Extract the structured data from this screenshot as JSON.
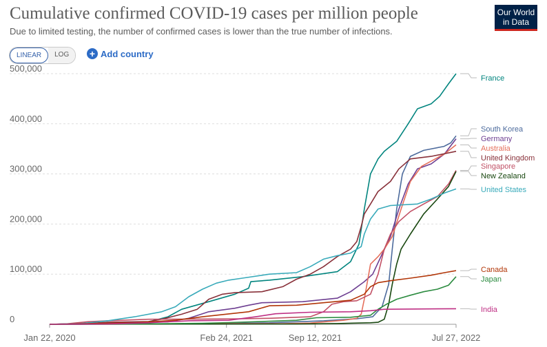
{
  "header": {
    "title": "Cumulative confirmed COVID-19 cases per million people",
    "subtitle": "Due to limited testing, the number of confirmed cases is lower than the true number of infections.",
    "logo_line1": "Our World",
    "logo_line2": "in Data"
  },
  "controls": {
    "linear_label": "LINEAR",
    "log_label": "LOG",
    "add_country_label": "Add country"
  },
  "colors": {
    "gridline": "#dddddd",
    "axis": "#999999",
    "connector": "#bbbbbb"
  },
  "chart_data": {
    "type": "line",
    "title": "Cumulative confirmed COVID-19 cases per million people",
    "subtitle": "Due to limited testing, the number of confirmed cases is lower than the true number of infections.",
    "x_ticks": [
      "Jan 22, 2020",
      "Feb 24, 2021",
      "Sep 12, 2021",
      "Jul 27, 2022"
    ],
    "x_range": [
      "2020-01-22",
      "2022-07-27"
    ],
    "y_ticks": [
      "0",
      "100,000",
      "200,000",
      "300,000",
      "400,000",
      "500,000"
    ],
    "ylim": [
      0,
      500000
    ],
    "grid": true,
    "legend_placement": "right",
    "series": [
      {
        "name": "France",
        "color": "#00847e",
        "points": [
          [
            "2020-01-22",
            0
          ],
          [
            "2020-04-15",
            1500
          ],
          [
            "2020-09-01",
            5000
          ],
          [
            "2020-10-15",
            15000
          ],
          [
            "2020-11-15",
            30000
          ],
          [
            "2021-01-15",
            45000
          ],
          [
            "2021-03-15",
            60000
          ],
          [
            "2021-04-15",
            72000
          ],
          [
            "2021-04-20",
            85000
          ],
          [
            "2021-06-01",
            88000
          ],
          [
            "2021-08-15",
            95000
          ],
          [
            "2021-11-01",
            105000
          ],
          [
            "2021-12-01",
            125000
          ],
          [
            "2021-12-20",
            160000
          ],
          [
            "2022-01-01",
            230000
          ],
          [
            "2022-01-15",
            300000
          ],
          [
            "2022-02-01",
            330000
          ],
          [
            "2022-02-15",
            345000
          ],
          [
            "2022-03-15",
            365000
          ],
          [
            "2022-04-10",
            400000
          ],
          [
            "2022-05-01",
            430000
          ],
          [
            "2022-06-01",
            440000
          ],
          [
            "2022-06-20",
            455000
          ],
          [
            "2022-07-10",
            480000
          ],
          [
            "2022-07-27",
            500000
          ]
        ]
      },
      {
        "name": "South Korea",
        "color": "#4c6a9c",
        "points": [
          [
            "2020-01-22",
            0
          ],
          [
            "2020-04-01",
            200
          ],
          [
            "2020-10-01",
            500
          ],
          [
            "2021-01-01",
            1200
          ],
          [
            "2021-06-01",
            3000
          ],
          [
            "2021-10-01",
            7000
          ],
          [
            "2021-12-15",
            11000
          ],
          [
            "2022-01-20",
            15000
          ],
          [
            "2022-02-10",
            35000
          ],
          [
            "2022-02-25",
            80000
          ],
          [
            "2022-03-05",
            150000
          ],
          [
            "2022-03-15",
            230000
          ],
          [
            "2022-03-28",
            300000
          ],
          [
            "2022-04-15",
            335000
          ],
          [
            "2022-05-15",
            347000
          ],
          [
            "2022-06-30",
            355000
          ],
          [
            "2022-07-15",
            362000
          ],
          [
            "2022-07-27",
            376000
          ]
        ]
      },
      {
        "name": "Germany",
        "color": "#6d3e91",
        "points": [
          [
            "2020-01-22",
            0
          ],
          [
            "2020-05-01",
            2000
          ],
          [
            "2020-10-15",
            5000
          ],
          [
            "2020-12-01",
            12000
          ],
          [
            "2021-01-15",
            25000
          ],
          [
            "2021-03-15",
            32000
          ],
          [
            "2021-04-15",
            38000
          ],
          [
            "2021-05-15",
            43000
          ],
          [
            "2021-08-15",
            45000
          ],
          [
            "2021-11-01",
            52000
          ],
          [
            "2021-12-01",
            65000
          ],
          [
            "2022-01-01",
            85000
          ],
          [
            "2022-01-20",
            100000
          ],
          [
            "2022-02-10",
            140000
          ],
          [
            "2022-03-01",
            175000
          ],
          [
            "2022-03-20",
            230000
          ],
          [
            "2022-04-10",
            280000
          ],
          [
            "2022-05-01",
            310000
          ],
          [
            "2022-06-01",
            320000
          ],
          [
            "2022-07-01",
            340000
          ],
          [
            "2022-07-27",
            370000
          ]
        ]
      },
      {
        "name": "Australia",
        "color": "#e56e5a",
        "points": [
          [
            "2020-01-22",
            0
          ],
          [
            "2020-06-01",
            300
          ],
          [
            "2021-01-01",
            1100
          ],
          [
            "2021-07-01",
            1400
          ],
          [
            "2021-09-01",
            2500
          ],
          [
            "2021-11-15",
            8000
          ],
          [
            "2021-12-15",
            12000
          ],
          [
            "2021-12-25",
            20000
          ],
          [
            "2022-01-01",
            50000
          ],
          [
            "2022-01-15",
            120000
          ],
          [
            "2022-02-01",
            135000
          ],
          [
            "2022-02-15",
            150000
          ],
          [
            "2022-03-05",
            175000
          ],
          [
            "2022-03-25",
            230000
          ],
          [
            "2022-04-15",
            285000
          ],
          [
            "2022-05-10",
            315000
          ],
          [
            "2022-06-10",
            330000
          ],
          [
            "2022-07-01",
            340000
          ],
          [
            "2022-07-27",
            358000
          ]
        ]
      },
      {
        "name": "United Kingdom",
        "color": "#883039",
        "points": [
          [
            "2020-01-22",
            0
          ],
          [
            "2020-04-15",
            1500
          ],
          [
            "2020-06-01",
            4000
          ],
          [
            "2020-09-01",
            5500
          ],
          [
            "2020-10-01",
            10000
          ],
          [
            "2020-11-15",
            20000
          ],
          [
            "2020-12-20",
            30000
          ],
          [
            "2021-01-15",
            50000
          ],
          [
            "2021-02-15",
            60000
          ],
          [
            "2021-03-15",
            63000
          ],
          [
            "2021-05-15",
            65000
          ],
          [
            "2021-07-01",
            75000
          ],
          [
            "2021-08-01",
            90000
          ],
          [
            "2021-09-01",
            100000
          ],
          [
            "2021-10-01",
            115000
          ],
          [
            "2021-11-01",
            135000
          ],
          [
            "2021-12-01",
            150000
          ],
          [
            "2021-12-15",
            165000
          ],
          [
            "2021-12-25",
            195000
          ],
          [
            "2022-01-01",
            220000
          ],
          [
            "2022-01-15",
            240000
          ],
          [
            "2022-02-01",
            265000
          ],
          [
            "2022-03-01",
            285000
          ],
          [
            "2022-03-20",
            310000
          ],
          [
            "2022-04-15",
            330000
          ],
          [
            "2022-06-01",
            335000
          ],
          [
            "2022-07-27",
            345000
          ]
        ]
      },
      {
        "name": "Singapore",
        "color": "#c15065",
        "points": [
          [
            "2020-01-22",
            0
          ],
          [
            "2020-03-01",
            1000
          ],
          [
            "2020-04-15",
            5000
          ],
          [
            "2020-06-01",
            7000
          ],
          [
            "2020-09-01",
            10000
          ],
          [
            "2021-01-01",
            10500
          ],
          [
            "2021-04-01",
            11000
          ],
          [
            "2021-06-01",
            12000
          ],
          [
            "2021-09-01",
            15000
          ],
          [
            "2021-10-01",
            25000
          ],
          [
            "2021-10-20",
            40000
          ],
          [
            "2021-11-15",
            45000
          ],
          [
            "2021-12-15",
            47000
          ],
          [
            "2022-01-15",
            60000
          ],
          [
            "2022-02-01",
            100000
          ],
          [
            "2022-02-15",
            150000
          ],
          [
            "2022-03-01",
            180000
          ],
          [
            "2022-03-20",
            205000
          ],
          [
            "2022-04-15",
            225000
          ],
          [
            "2022-05-15",
            240000
          ],
          [
            "2022-06-15",
            255000
          ],
          [
            "2022-07-10",
            280000
          ],
          [
            "2022-07-27",
            307000
          ]
        ]
      },
      {
        "name": "New Zealand",
        "color": "#18470f",
        "points": [
          [
            "2020-01-22",
            0
          ],
          [
            "2020-06-01",
            300
          ],
          [
            "2021-01-01",
            400
          ],
          [
            "2021-08-01",
            600
          ],
          [
            "2021-11-01",
            1500
          ],
          [
            "2022-01-15",
            3000
          ],
          [
            "2022-02-01",
            4000
          ],
          [
            "2022-02-15",
            10000
          ],
          [
            "2022-02-25",
            40000
          ],
          [
            "2022-03-05",
            80000
          ],
          [
            "2022-03-15",
            120000
          ],
          [
            "2022-03-25",
            150000
          ],
          [
            "2022-04-15",
            180000
          ],
          [
            "2022-05-15",
            220000
          ],
          [
            "2022-06-15",
            250000
          ],
          [
            "2022-07-10",
            275000
          ],
          [
            "2022-07-27",
            305000
          ]
        ]
      },
      {
        "name": "United States",
        "color": "#38aaba",
        "points": [
          [
            "2020-01-22",
            0
          ],
          [
            "2020-04-01",
            1500
          ],
          [
            "2020-06-01",
            7000
          ],
          [
            "2020-08-01",
            15000
          ],
          [
            "2020-10-01",
            25000
          ],
          [
            "2020-11-01",
            35000
          ],
          [
            "2020-12-01",
            55000
          ],
          [
            "2021-01-01",
            70000
          ],
          [
            "2021-02-01",
            82000
          ],
          [
            "2021-03-01",
            88000
          ],
          [
            "2021-04-01",
            92000
          ],
          [
            "2021-06-01",
            100000
          ],
          [
            "2021-08-01",
            103000
          ],
          [
            "2021-09-01",
            115000
          ],
          [
            "2021-10-01",
            130000
          ],
          [
            "2021-11-01",
            137000
          ],
          [
            "2021-12-01",
            142000
          ],
          [
            "2021-12-25",
            155000
          ],
          [
            "2022-01-01",
            180000
          ],
          [
            "2022-01-15",
            210000
          ],
          [
            "2022-02-01",
            230000
          ],
          [
            "2022-03-01",
            237000
          ],
          [
            "2022-05-01",
            240000
          ],
          [
            "2022-06-01",
            250000
          ],
          [
            "2022-07-01",
            262000
          ],
          [
            "2022-07-27",
            270000
          ]
        ]
      },
      {
        "name": "Canada",
        "color": "#b13507",
        "points": [
          [
            "2020-01-22",
            0
          ],
          [
            "2020-05-01",
            1500
          ],
          [
            "2020-08-01",
            3000
          ],
          [
            "2020-11-01",
            8000
          ],
          [
            "2021-01-01",
            15000
          ],
          [
            "2021-04-15",
            25000
          ],
          [
            "2021-06-01",
            37000
          ],
          [
            "2021-08-01",
            38000
          ],
          [
            "2021-10-01",
            43000
          ],
          [
            "2021-12-01",
            48000
          ],
          [
            "2022-01-01",
            60000
          ],
          [
            "2022-01-15",
            75000
          ],
          [
            "2022-02-01",
            83000
          ],
          [
            "2022-03-01",
            87000
          ],
          [
            "2022-04-15",
            92000
          ],
          [
            "2022-06-01",
            98000
          ],
          [
            "2022-07-01",
            103000
          ],
          [
            "2022-07-27",
            107000
          ]
        ]
      },
      {
        "name": "Japan",
        "color": "#2b8b3f",
        "points": [
          [
            "2020-01-22",
            0
          ],
          [
            "2020-08-01",
            500
          ],
          [
            "2021-01-01",
            2000
          ],
          [
            "2021-03-01",
            3500
          ],
          [
            "2021-06-01",
            6000
          ],
          [
            "2021-08-01",
            8000
          ],
          [
            "2021-09-15",
            13000
          ],
          [
            "2021-12-01",
            14000
          ],
          [
            "2022-01-15",
            18000
          ],
          [
            "2022-02-01",
            30000
          ],
          [
            "2022-02-20",
            40000
          ],
          [
            "2022-03-15",
            50000
          ],
          [
            "2022-04-15",
            58000
          ],
          [
            "2022-05-15",
            65000
          ],
          [
            "2022-06-15",
            70000
          ],
          [
            "2022-07-10",
            78000
          ],
          [
            "2022-07-27",
            95000
          ]
        ]
      },
      {
        "name": "India",
        "color": "#be2e83",
        "points": [
          [
            "2020-01-22",
            0
          ],
          [
            "2020-06-01",
            500
          ],
          [
            "2020-09-01",
            3000
          ],
          [
            "2020-12-01",
            7000
          ],
          [
            "2021-03-01",
            8000
          ],
          [
            "2021-05-01",
            15000
          ],
          [
            "2021-06-15",
            21000
          ],
          [
            "2021-09-01",
            24000
          ],
          [
            "2021-12-01",
            25000
          ],
          [
            "2022-01-15",
            27000
          ],
          [
            "2022-02-15",
            30000
          ],
          [
            "2022-07-27",
            31000
          ]
        ]
      }
    ]
  }
}
